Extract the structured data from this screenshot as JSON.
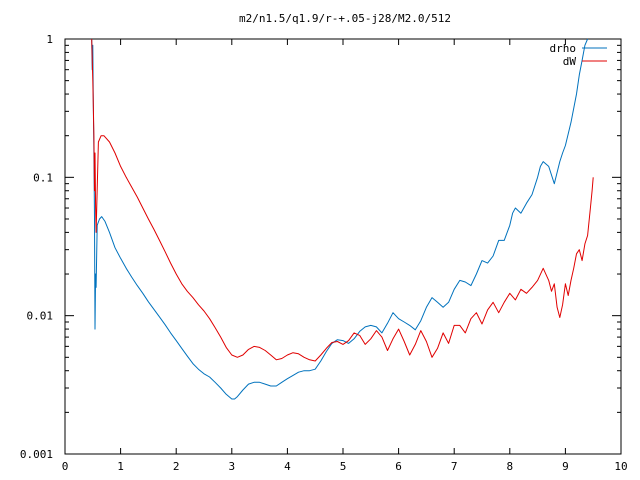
{
  "chart_data": {
    "type": "line",
    "title": "m2/n1.5/q1.9/r-+.05-j28/M2.0/512",
    "xlabel": "",
    "ylabel": "",
    "xlim": [
      0,
      10
    ],
    "ylim": [
      0.001,
      1
    ],
    "y_scale": "log",
    "grid": false,
    "legend_position": "top-right",
    "x_ticks": [
      "0",
      "1",
      "2",
      "3",
      "4",
      "5",
      "6",
      "7",
      "8",
      "9",
      "10"
    ],
    "y_ticks": [
      "1",
      "0.1",
      "0.01",
      "0.001"
    ],
    "series": [
      {
        "name": "drho",
        "color": "#0072bd",
        "points": [
          [
            0.48,
            1.0
          ],
          [
            0.49,
            0.6
          ],
          [
            0.5,
            0.9
          ],
          [
            0.51,
            0.3
          ],
          [
            0.52,
            0.15
          ],
          [
            0.53,
            0.05
          ],
          [
            0.54,
            0.008
          ],
          [
            0.55,
            0.02
          ],
          [
            0.56,
            0.016
          ],
          [
            0.58,
            0.045
          ],
          [
            0.62,
            0.05
          ],
          [
            0.66,
            0.052
          ],
          [
            0.72,
            0.048
          ],
          [
            0.8,
            0.04
          ],
          [
            0.9,
            0.031
          ],
          [
            1.0,
            0.026
          ],
          [
            1.1,
            0.022
          ],
          [
            1.2,
            0.019
          ],
          [
            1.3,
            0.0165
          ],
          [
            1.4,
            0.0145
          ],
          [
            1.5,
            0.0126
          ],
          [
            1.6,
            0.0111
          ],
          [
            1.7,
            0.0098
          ],
          [
            1.8,
            0.0086
          ],
          [
            1.9,
            0.0075
          ],
          [
            2.0,
            0.0066
          ],
          [
            2.1,
            0.0058
          ],
          [
            2.2,
            0.0051
          ],
          [
            2.3,
            0.0045
          ],
          [
            2.4,
            0.0041
          ],
          [
            2.5,
            0.0038
          ],
          [
            2.6,
            0.0036
          ],
          [
            2.7,
            0.0033
          ],
          [
            2.8,
            0.003
          ],
          [
            2.9,
            0.0027
          ],
          [
            3.0,
            0.0025
          ],
          [
            3.05,
            0.0025
          ],
          [
            3.1,
            0.0026
          ],
          [
            3.2,
            0.0029
          ],
          [
            3.3,
            0.0032
          ],
          [
            3.4,
            0.0033
          ],
          [
            3.5,
            0.0033
          ],
          [
            3.6,
            0.0032
          ],
          [
            3.7,
            0.0031
          ],
          [
            3.8,
            0.0031
          ],
          [
            3.9,
            0.0033
          ],
          [
            4.0,
            0.0035
          ],
          [
            4.1,
            0.0037
          ],
          [
            4.2,
            0.0039
          ],
          [
            4.3,
            0.004
          ],
          [
            4.4,
            0.004
          ],
          [
            4.5,
            0.0041
          ],
          [
            4.6,
            0.0047
          ],
          [
            4.7,
            0.0055
          ],
          [
            4.8,
            0.0063
          ],
          [
            4.9,
            0.0067
          ],
          [
            5.0,
            0.0066
          ],
          [
            5.1,
            0.0063
          ],
          [
            5.2,
            0.0068
          ],
          [
            5.3,
            0.0077
          ],
          [
            5.4,
            0.0083
          ],
          [
            5.5,
            0.0085
          ],
          [
            5.6,
            0.0083
          ],
          [
            5.7,
            0.0075
          ],
          [
            5.8,
            0.0088
          ],
          [
            5.9,
            0.0105
          ],
          [
            6.0,
            0.0095
          ],
          [
            6.1,
            0.009
          ],
          [
            6.2,
            0.0085
          ],
          [
            6.3,
            0.0079
          ],
          [
            6.4,
            0.0092
          ],
          [
            6.5,
            0.0115
          ],
          [
            6.6,
            0.0135
          ],
          [
            6.7,
            0.0125
          ],
          [
            6.8,
            0.0115
          ],
          [
            6.9,
            0.0125
          ],
          [
            7.0,
            0.0155
          ],
          [
            7.1,
            0.018
          ],
          [
            7.2,
            0.0175
          ],
          [
            7.3,
            0.0165
          ],
          [
            7.4,
            0.02
          ],
          [
            7.5,
            0.025
          ],
          [
            7.6,
            0.024
          ],
          [
            7.7,
            0.027
          ],
          [
            7.8,
            0.035
          ],
          [
            7.9,
            0.035
          ],
          [
            8.0,
            0.045
          ],
          [
            8.05,
            0.055
          ],
          [
            8.1,
            0.06
          ],
          [
            8.2,
            0.055
          ],
          [
            8.3,
            0.065
          ],
          [
            8.4,
            0.075
          ],
          [
            8.5,
            0.1
          ],
          [
            8.55,
            0.12
          ],
          [
            8.6,
            0.13
          ],
          [
            8.7,
            0.12
          ],
          [
            8.8,
            0.09
          ],
          [
            8.9,
            0.13
          ],
          [
            8.95,
            0.15
          ],
          [
            9.0,
            0.17
          ],
          [
            9.1,
            0.25
          ],
          [
            9.2,
            0.4
          ],
          [
            9.25,
            0.55
          ],
          [
            9.3,
            0.7
          ],
          [
            9.35,
            0.9
          ],
          [
            9.4,
            1.0
          ]
        ]
      },
      {
        "name": "dW",
        "color": "#e00000",
        "points": [
          [
            0.48,
            1.0
          ],
          [
            0.5,
            0.5
          ],
          [
            0.52,
            0.2
          ],
          [
            0.53,
            0.08
          ],
          [
            0.54,
            0.15
          ],
          [
            0.55,
            0.06
          ],
          [
            0.56,
            0.04
          ],
          [
            0.6,
            0.18
          ],
          [
            0.65,
            0.2
          ],
          [
            0.7,
            0.2
          ],
          [
            0.8,
            0.18
          ],
          [
            0.9,
            0.15
          ],
          [
            1.0,
            0.12
          ],
          [
            1.1,
            0.1
          ],
          [
            1.2,
            0.085
          ],
          [
            1.3,
            0.072
          ],
          [
            1.4,
            0.06
          ],
          [
            1.5,
            0.05
          ],
          [
            1.6,
            0.042
          ],
          [
            1.7,
            0.035
          ],
          [
            1.8,
            0.029
          ],
          [
            1.9,
            0.024
          ],
          [
            2.0,
            0.02
          ],
          [
            2.1,
            0.017
          ],
          [
            2.2,
            0.015
          ],
          [
            2.3,
            0.0135
          ],
          [
            2.4,
            0.012
          ],
          [
            2.5,
            0.0108
          ],
          [
            2.6,
            0.0095
          ],
          [
            2.7,
            0.0082
          ],
          [
            2.8,
            0.007
          ],
          [
            2.9,
            0.0059
          ],
          [
            3.0,
            0.0052
          ],
          [
            3.1,
            0.005
          ],
          [
            3.2,
            0.0052
          ],
          [
            3.3,
            0.0057
          ],
          [
            3.4,
            0.006
          ],
          [
            3.5,
            0.0059
          ],
          [
            3.6,
            0.0056
          ],
          [
            3.7,
            0.0052
          ],
          [
            3.8,
            0.0048
          ],
          [
            3.9,
            0.0049
          ],
          [
            4.0,
            0.0052
          ],
          [
            4.1,
            0.0054
          ],
          [
            4.2,
            0.0053
          ],
          [
            4.3,
            0.005
          ],
          [
            4.4,
            0.0048
          ],
          [
            4.5,
            0.0047
          ],
          [
            4.6,
            0.0052
          ],
          [
            4.7,
            0.0058
          ],
          [
            4.8,
            0.0064
          ],
          [
            4.9,
            0.0065
          ],
          [
            5.0,
            0.0062
          ],
          [
            5.1,
            0.0066
          ],
          [
            5.2,
            0.0075
          ],
          [
            5.3,
            0.0072
          ],
          [
            5.4,
            0.0062
          ],
          [
            5.5,
            0.0068
          ],
          [
            5.6,
            0.0078
          ],
          [
            5.7,
            0.007
          ],
          [
            5.8,
            0.0056
          ],
          [
            5.9,
            0.0068
          ],
          [
            6.0,
            0.008
          ],
          [
            6.1,
            0.0065
          ],
          [
            6.2,
            0.0052
          ],
          [
            6.3,
            0.0062
          ],
          [
            6.4,
            0.0078
          ],
          [
            6.5,
            0.0065
          ],
          [
            6.6,
            0.005
          ],
          [
            6.7,
            0.0058
          ],
          [
            6.8,
            0.0075
          ],
          [
            6.9,
            0.0063
          ],
          [
            7.0,
            0.0085
          ],
          [
            7.1,
            0.0085
          ],
          [
            7.2,
            0.0075
          ],
          [
            7.3,
            0.0095
          ],
          [
            7.4,
            0.0105
          ],
          [
            7.5,
            0.0087
          ],
          [
            7.6,
            0.011
          ],
          [
            7.7,
            0.0125
          ],
          [
            7.8,
            0.0105
          ],
          [
            7.9,
            0.0125
          ],
          [
            8.0,
            0.0145
          ],
          [
            8.1,
            0.013
          ],
          [
            8.2,
            0.0155
          ],
          [
            8.3,
            0.0145
          ],
          [
            8.4,
            0.016
          ],
          [
            8.5,
            0.018
          ],
          [
            8.6,
            0.022
          ],
          [
            8.7,
            0.018
          ],
          [
            8.75,
            0.015
          ],
          [
            8.8,
            0.017
          ],
          [
            8.85,
            0.0115
          ],
          [
            8.9,
            0.0097
          ],
          [
            8.95,
            0.012
          ],
          [
            9.0,
            0.017
          ],
          [
            9.05,
            0.014
          ],
          [
            9.1,
            0.018
          ],
          [
            9.15,
            0.022
          ],
          [
            9.2,
            0.028
          ],
          [
            9.25,
            0.03
          ],
          [
            9.3,
            0.025
          ],
          [
            9.35,
            0.033
          ],
          [
            9.4,
            0.038
          ],
          [
            9.45,
            0.06
          ],
          [
            9.48,
            0.08
          ],
          [
            9.5,
            0.1
          ]
        ]
      }
    ]
  }
}
